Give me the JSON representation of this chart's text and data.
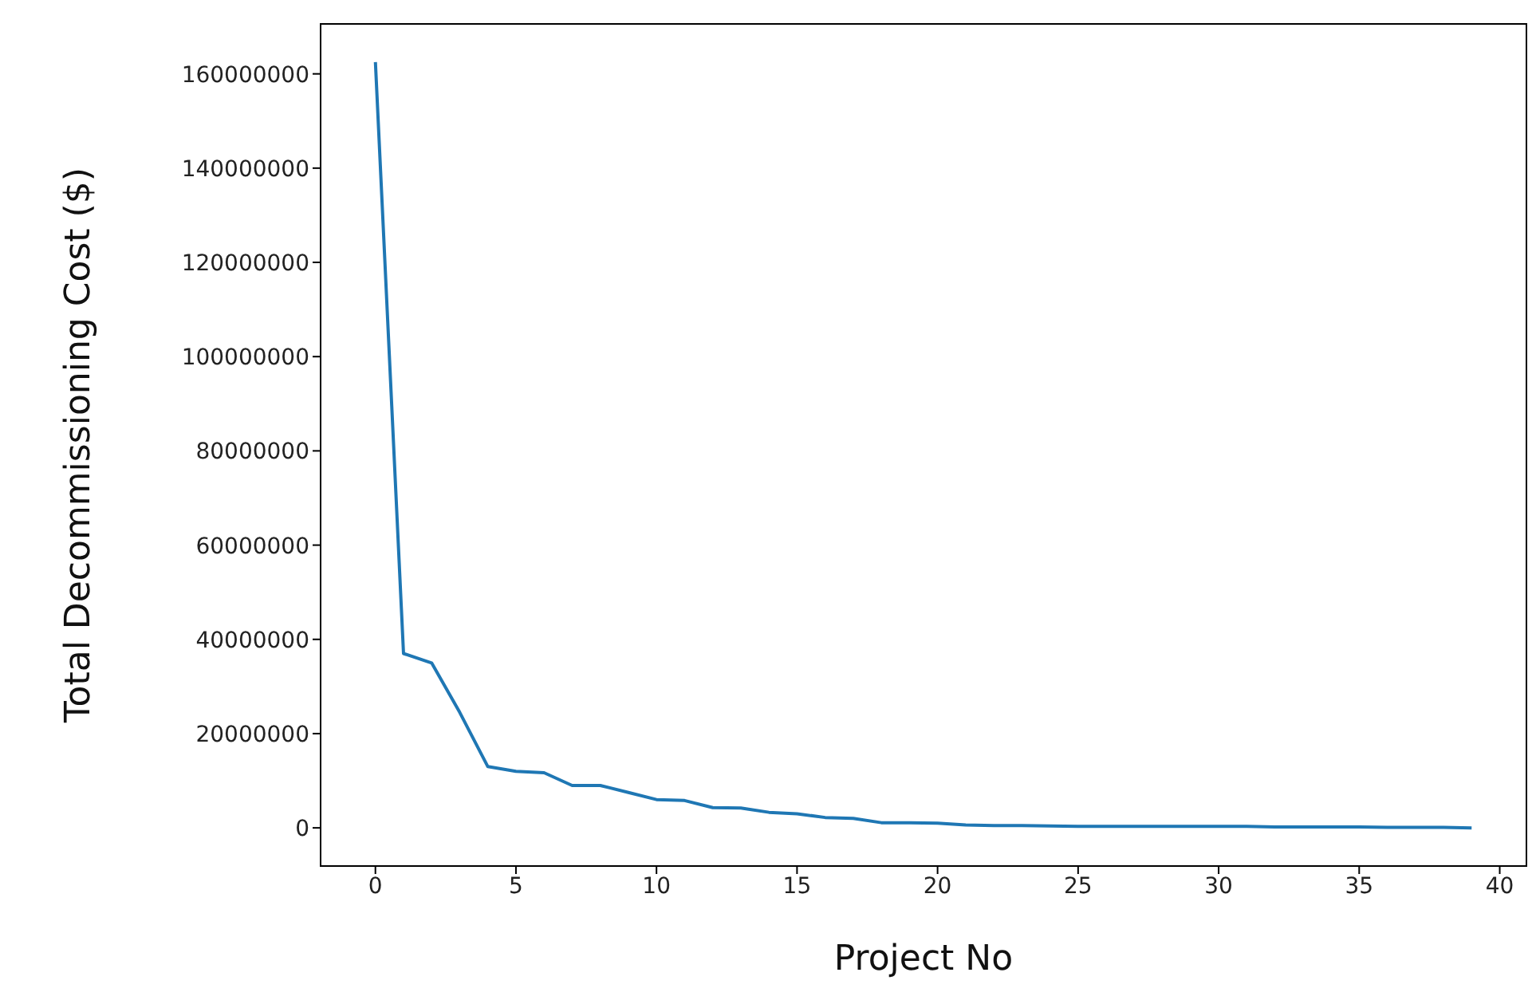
{
  "chart_data": {
    "type": "line",
    "xlabel": "Project No",
    "ylabel": "Total Decommissioning Cost ($)",
    "x": [
      0,
      1,
      2,
      3,
      4,
      5,
      6,
      7,
      8,
      9,
      10,
      11,
      12,
      13,
      14,
      15,
      16,
      17,
      18,
      19,
      20,
      21,
      22,
      23,
      24,
      25,
      26,
      27,
      28,
      29,
      30,
      31,
      32,
      33,
      34,
      35,
      36,
      37,
      38,
      39
    ],
    "series": [
      {
        "color": "#1f77b4",
        "values": [
          162500000,
          37000000,
          35000000,
          24500000,
          13000000,
          12000000,
          11700000,
          9000000,
          9000000,
          7500000,
          6000000,
          5800000,
          4300000,
          4200000,
          3300000,
          3000000,
          2200000,
          2000000,
          1100000,
          1100000,
          1000000,
          600000,
          500000,
          500000,
          400000,
          300000,
          300000,
          300000,
          300000,
          300000,
          300000,
          300000,
          200000,
          200000,
          200000,
          200000,
          100000,
          100000,
          100000,
          0
        ]
      }
    ],
    "xlim": [
      -1.95,
      40.95
    ],
    "xticks": [
      0,
      5,
      10,
      15,
      20,
      25,
      30,
      35,
      40
    ],
    "ylim": [
      -8100000,
      170600000
    ],
    "yticks": [
      0,
      20000000,
      40000000,
      60000000,
      80000000,
      100000000,
      120000000,
      140000000,
      160000000
    ],
    "grid": false,
    "legend": false,
    "marker": "none",
    "line_style": "solid"
  }
}
